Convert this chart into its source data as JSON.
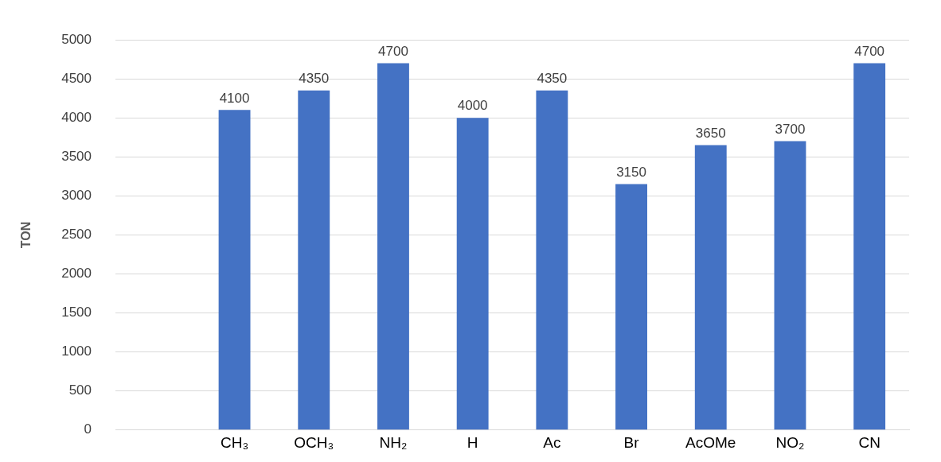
{
  "chart_data": {
    "type": "bar",
    "ylabel": "TON",
    "categories": [
      null,
      "CH₃",
      "OCH₃",
      "NH₂",
      "H",
      "Ac",
      "Br",
      "AcOMe",
      "NO₂",
      "CN"
    ],
    "values": [
      null,
      4100,
      4350,
      4700,
      4000,
      4350,
      3150,
      3650,
      3700,
      4700
    ],
    "color": "#4472c4",
    "ylim": [
      0,
      5000
    ],
    "yticks": [
      0,
      500,
      1000,
      1500,
      2000,
      2500,
      3000,
      3500,
      4000,
      4500,
      5000
    ],
    "grid": "y",
    "legend": false,
    "data_labels": true
  }
}
